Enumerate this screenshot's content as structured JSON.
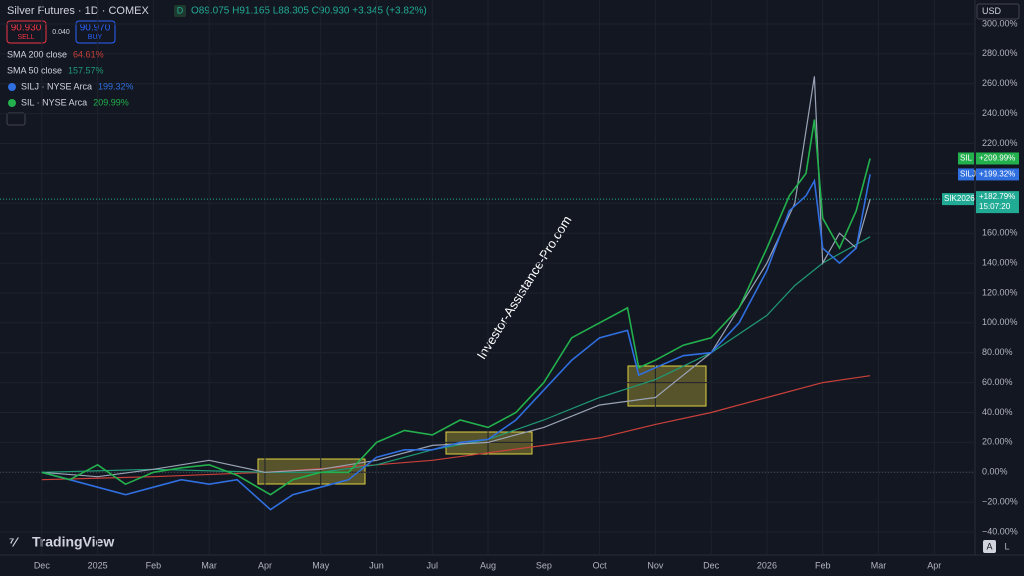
{
  "header": {
    "symbol": "Silver Futures · 1D · COMEX",
    "interval_badge": "D",
    "ohlc": "O89.075 H91.165 L88.305 C90.930 +3.345 (+3.82%)",
    "sell_price": "90.930",
    "sell": "SELL",
    "spread": "0.040",
    "buy_price": "90.970",
    "buy": "BUY",
    "currency": "USD",
    "watermark": "Investor-Assistance-Pro.com",
    "logo": "TradingView",
    "scale_auto": "A",
    "scale_log": "L"
  },
  "chart_data": {
    "type": "line",
    "xlim": [
      -0.75,
      16.73
    ],
    "xticks": [
      {
        "value": 0,
        "label": "Dec"
      },
      {
        "value": 1,
        "label": "2025"
      },
      {
        "value": 2,
        "label": "Feb"
      },
      {
        "value": 3,
        "label": "Mar"
      },
      {
        "value": 4,
        "label": "Apr"
      },
      {
        "value": 5,
        "label": "May"
      },
      {
        "value": 6,
        "label": "Jun"
      },
      {
        "value": 7,
        "label": "Jul"
      },
      {
        "value": 8,
        "label": "Aug"
      },
      {
        "value": 9,
        "label": "Sep"
      },
      {
        "value": 10,
        "label": "Oct"
      },
      {
        "value": 11,
        "label": "Nov"
      },
      {
        "value": 12,
        "label": "Dec"
      },
      {
        "value": 13,
        "label": "2026"
      },
      {
        "value": 14,
        "label": "Feb"
      },
      {
        "value": 15,
        "label": "Mar"
      },
      {
        "value": 16,
        "label": "Apr"
      }
    ],
    "ylim": [
      -44,
      302
    ],
    "yticks": [
      {
        "value": 300,
        "label": "300.00%"
      },
      {
        "value": 280,
        "label": "280.00%"
      },
      {
        "value": 260,
        "label": "260.00%"
      },
      {
        "value": 240,
        "label": "240.00%"
      },
      {
        "value": 220,
        "label": "220.00%"
      },
      {
        "value": 200,
        "label": "200.00%"
      },
      {
        "value": 180,
        "label": "180.00%"
      },
      {
        "value": 160,
        "label": "160.00%"
      },
      {
        "value": 140,
        "label": "140.00%"
      },
      {
        "value": 120,
        "label": "120.00%"
      },
      {
        "value": 100,
        "label": "100.00%"
      },
      {
        "value": 80,
        "label": "80.00%"
      },
      {
        "value": 60,
        "label": "60.00%"
      },
      {
        "value": 40,
        "label": "40.00%"
      },
      {
        "value": 20,
        "label": "20.00%"
      },
      {
        "value": 0,
        "label": "0.00%"
      },
      {
        "value": -20,
        "label": "−20.00%"
      },
      {
        "value": -40,
        "label": "−40.00%"
      }
    ],
    "grid": true,
    "series": [
      {
        "name": "SMA 200 close",
        "legend_value": "64.61%",
        "color": "#c9403a",
        "x": [
          0,
          2,
          4,
          6,
          7,
          8,
          9,
          10,
          11,
          12,
          13,
          14,
          14.85
        ],
        "values": [
          -5,
          -3,
          0,
          5,
          8,
          13,
          18,
          23,
          32,
          40,
          50,
          60,
          64.61
        ]
      },
      {
        "name": "SMA 50 close",
        "legend_value": "157.57%",
        "color": "#1f9a74",
        "x": [
          0,
          2,
          4,
          5,
          6,
          7,
          8,
          9,
          10,
          11,
          12,
          13,
          13.5,
          14,
          14.85
        ],
        "values": [
          0,
          2,
          0,
          0,
          5,
          15,
          22,
          35,
          50,
          62,
          80,
          105,
          125,
          140,
          157.57
        ]
      },
      {
        "name": "SIK2026",
        "color": "#9aa3b5",
        "tag_value": "+182.79%",
        "tag_time": "15:07:20",
        "x": [
          0,
          1,
          2,
          3,
          4,
          5,
          6,
          7,
          8,
          9,
          10,
          11,
          12,
          13,
          13.5,
          13.85,
          14,
          14.3,
          14.6,
          14.85
        ],
        "values": [
          0,
          -3,
          2,
          8,
          0,
          2,
          8,
          18,
          20,
          30,
          45,
          50,
          80,
          140,
          180,
          265,
          140,
          160,
          150,
          182.79
        ]
      },
      {
        "name": "SILJ · NYSE Arca",
        "tag": "SILJ",
        "tag_value": "+199.32%",
        "legend_value": "199.32%",
        "color": "#2f6fe0",
        "x": [
          0,
          0.5,
          1,
          1.5,
          2,
          2.5,
          3,
          3.5,
          4.1,
          4.5,
          5,
          5.5,
          6,
          6.5,
          7,
          7.5,
          8,
          8.5,
          9,
          9.5,
          10,
          10.5,
          10.7,
          11,
          11.5,
          12,
          12.5,
          13,
          13.4,
          13.7,
          13.85,
          14,
          14.3,
          14.6,
          14.85
        ],
        "values": [
          0,
          -5,
          -10,
          -15,
          -10,
          -5,
          -8,
          -5,
          -25,
          -15,
          -10,
          -5,
          10,
          15,
          15,
          20,
          22,
          35,
          55,
          75,
          90,
          95,
          65,
          70,
          78,
          80,
          100,
          135,
          175,
          185,
          195,
          150,
          140,
          150,
          199.32
        ]
      },
      {
        "name": "SIL · NYSE Arca",
        "tag": "SIL",
        "tag_value": "+209.99%",
        "legend_value": "209.99%",
        "color": "#22b14c",
        "x": [
          0,
          0.5,
          1,
          1.5,
          2,
          2.5,
          3,
          3.5,
          4.1,
          4.5,
          5,
          5.5,
          6,
          6.5,
          7,
          7.5,
          8,
          8.5,
          9,
          9.5,
          10,
          10.5,
          10.7,
          11,
          11.5,
          12,
          12.5,
          13,
          13.4,
          13.7,
          13.85,
          14,
          14.3,
          14.6,
          14.85
        ],
        "values": [
          0,
          -5,
          5,
          -8,
          0,
          3,
          5,
          -2,
          -15,
          -5,
          0,
          0,
          20,
          28,
          25,
          35,
          30,
          40,
          60,
          90,
          100,
          110,
          70,
          75,
          85,
          90,
          110,
          150,
          185,
          200,
          236,
          170,
          150,
          175,
          209.99
        ]
      }
    ]
  }
}
